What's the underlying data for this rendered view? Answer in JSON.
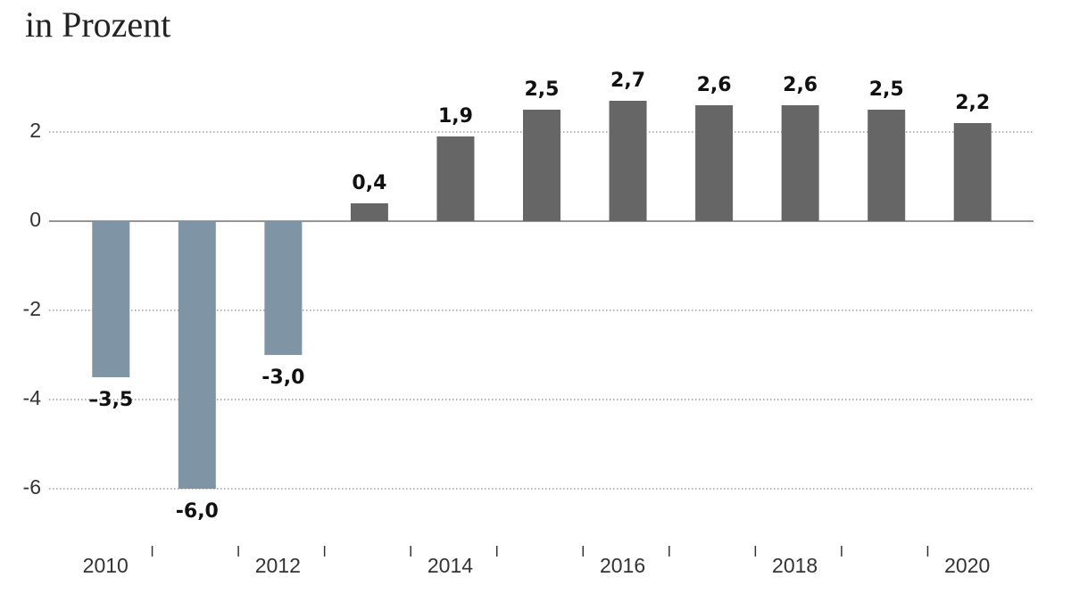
{
  "chart_data": {
    "type": "bar",
    "subtitle": "in Prozent",
    "categories": [
      "2010",
      null,
      "2012",
      null,
      "2014",
      null,
      "2016",
      null,
      "2018",
      null,
      "2020"
    ],
    "values": [
      -3.5,
      -6.0,
      -3.0,
      0.4,
      1.9,
      2.5,
      2.7,
      2.6,
      2.6,
      2.5,
      2.2
    ],
    "value_labels": [
      "–3,5",
      "-6,0",
      "-3,0",
      "0,4",
      "1,9",
      "2,5",
      "2,7",
      "2,6",
      "2,6",
      "2,5",
      "2,2"
    ],
    "colors": [
      "#7f95a6",
      "#7f95a6",
      "#7f95a6",
      "#666666",
      "#666666",
      "#666666",
      "#666666",
      "#666666",
      "#666666",
      "#666666",
      "#666666"
    ],
    "ylim": [
      -7,
      3.5
    ],
    "yticks": [
      2,
      0,
      -2,
      -4,
      -6
    ],
    "grid": true
  }
}
